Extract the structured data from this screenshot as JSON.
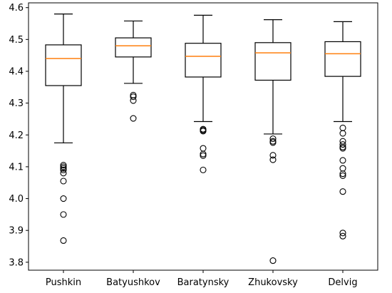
{
  "chart_data": {
    "type": "box",
    "title": "",
    "xlabel": "",
    "ylabel": "",
    "ylim": [
      3.775,
      4.615
    ],
    "yticks": [
      3.8,
      3.9,
      4.0,
      4.1,
      4.2,
      4.3,
      4.4,
      4.5,
      4.6
    ],
    "ytick_labels": [
      "3.8",
      "3.9",
      "4.0",
      "4.1",
      "4.2",
      "4.3",
      "4.4",
      "4.5",
      "4.6"
    ],
    "categories": [
      "Pushkin",
      "Batyushkov",
      "Baratynsky",
      "Zhukovsky",
      "Delvig"
    ],
    "boxes": [
      {
        "whisker_low": 4.175,
        "q1": 4.355,
        "median": 4.44,
        "q3": 4.483,
        "whisker_high": 4.58,
        "outliers": [
          4.105,
          4.1,
          4.095,
          4.09,
          4.08,
          4.055,
          4.0,
          3.95,
          3.868
        ]
      },
      {
        "whisker_low": 4.362,
        "q1": 4.445,
        "median": 4.48,
        "q3": 4.505,
        "whisker_high": 4.558,
        "outliers": [
          4.325,
          4.32,
          4.308,
          4.252
        ]
      },
      {
        "whisker_low": 4.242,
        "q1": 4.382,
        "median": 4.447,
        "q3": 4.488,
        "whisker_high": 4.576,
        "outliers": [
          4.218,
          4.215,
          4.212,
          4.158,
          4.14,
          4.135,
          4.09
        ]
      },
      {
        "whisker_low": 4.203,
        "q1": 4.372,
        "median": 4.458,
        "q3": 4.49,
        "whisker_high": 4.562,
        "outliers": [
          4.188,
          4.18,
          4.176,
          4.136,
          4.122,
          3.805
        ]
      },
      {
        "whisker_low": 4.242,
        "q1": 4.384,
        "median": 4.455,
        "q3": 4.493,
        "whisker_high": 4.556,
        "outliers": [
          4.222,
          4.205,
          4.18,
          4.17,
          4.162,
          4.158,
          4.12,
          4.095,
          4.078,
          4.072,
          4.022,
          3.892,
          3.882
        ]
      }
    ],
    "colors": {
      "box": "#000000",
      "median": "#ff7f0e",
      "background": "#ffffff"
    },
    "grid": false,
    "legend": "none"
  }
}
